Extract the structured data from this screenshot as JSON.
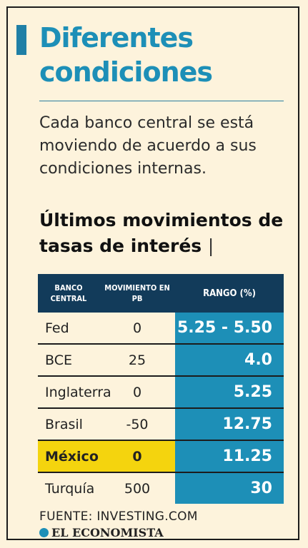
{
  "title": "Diferentes condiciones",
  "subtitle": "Cada banco central se está moviendo de acuerdo a sus condiciones internas.",
  "section_title": "Últimos movimientos de tasas de interés",
  "cursor_char": "|",
  "table": {
    "headers": [
      "BANCO CENTRAL",
      "MOVIMIENTO EN PB",
      "RANGO (%)"
    ],
    "rows": [
      {
        "banco": "Fed",
        "movimiento": "0",
        "rango": "5.25 - 5.50"
      },
      {
        "banco": "BCE",
        "movimiento": "25",
        "rango": "4.0"
      },
      {
        "banco": "Inglaterra",
        "movimiento": "0",
        "rango": "5.25"
      },
      {
        "banco": "Brasil",
        "movimiento": "-50",
        "rango": "12.75"
      },
      {
        "banco": "México",
        "movimiento": "0",
        "rango": "11.25"
      },
      {
        "banco": "Turquía",
        "movimiento": "500",
        "rango": "30"
      }
    ],
    "highlight_row": "México"
  },
  "source": "FUENTE: INVESTING.COM",
  "brand": "EL ECONOMISTA",
  "colors": {
    "accent": "#1d8fb7",
    "header_bg": "#123b5a",
    "highlight": "#f4d40e",
    "background": "#fdf3dc"
  }
}
